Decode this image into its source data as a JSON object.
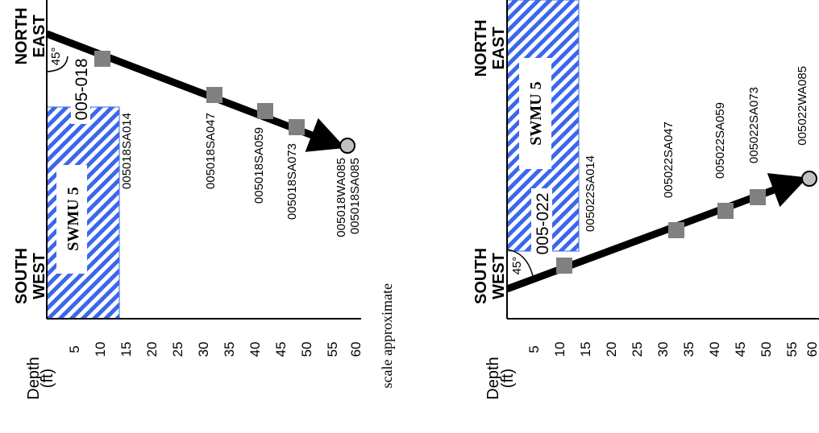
{
  "figure": {
    "scale_note": "scale approximate",
    "sample_marker_color": "#808080",
    "end_marker_color": "#c0c0c0",
    "hatch_color": "#3b67ea"
  },
  "panels": [
    {
      "boring_id": "005-018",
      "top_direction": "NORTH EAST",
      "bottom_direction": "SOUTH WEST",
      "angle_label": "45°",
      "unit_label": "SWMU 5",
      "depth_title": "Depth",
      "depth_unit": "(ft)",
      "depth_ticks": [
        "5",
        "10",
        "15",
        "20",
        "25",
        "30",
        "35",
        "40",
        "45",
        "50",
        "55",
        "60"
      ],
      "unit_depth_ft": [
        0,
        14
      ],
      "samples": [
        {
          "label": "005018SA014",
          "depth_ft": 11,
          "shape": "square"
        },
        {
          "label": "005018SA047",
          "depth_ft": 33,
          "shape": "square"
        },
        {
          "label": "005018SA059",
          "depth_ft": 42,
          "shape": "square"
        },
        {
          "label": "005018SA073",
          "depth_ft": 48.5,
          "shape": "square"
        },
        {
          "label": "005018WA085\n005018SA085",
          "depth_ft": 58,
          "shape": "circle"
        }
      ]
    },
    {
      "boring_id": "005-022",
      "top_direction": "NORTH EAST",
      "bottom_direction": "SOUTH WEST",
      "angle_label": "45°",
      "unit_label": "SWMU 5",
      "depth_title": "Depth",
      "depth_unit": "(ft)",
      "depth_ticks": [
        "5",
        "10",
        "15",
        "20",
        "25",
        "30",
        "35",
        "40",
        "45",
        "50",
        "55",
        "60"
      ],
      "unit_depth_ft": [
        0,
        14
      ],
      "samples": [
        {
          "label": "005022SA014",
          "depth_ft": 11,
          "shape": "square"
        },
        {
          "label": "005022SA047",
          "depth_ft": 33,
          "shape": "square"
        },
        {
          "label": "005022SA059",
          "depth_ft": 42,
          "shape": "square"
        },
        {
          "label": "005022SA073",
          "depth_ft": 48.5,
          "shape": "square"
        },
        {
          "label": "005022WA085",
          "depth_ft": 58,
          "shape": "circle"
        }
      ]
    }
  ]
}
